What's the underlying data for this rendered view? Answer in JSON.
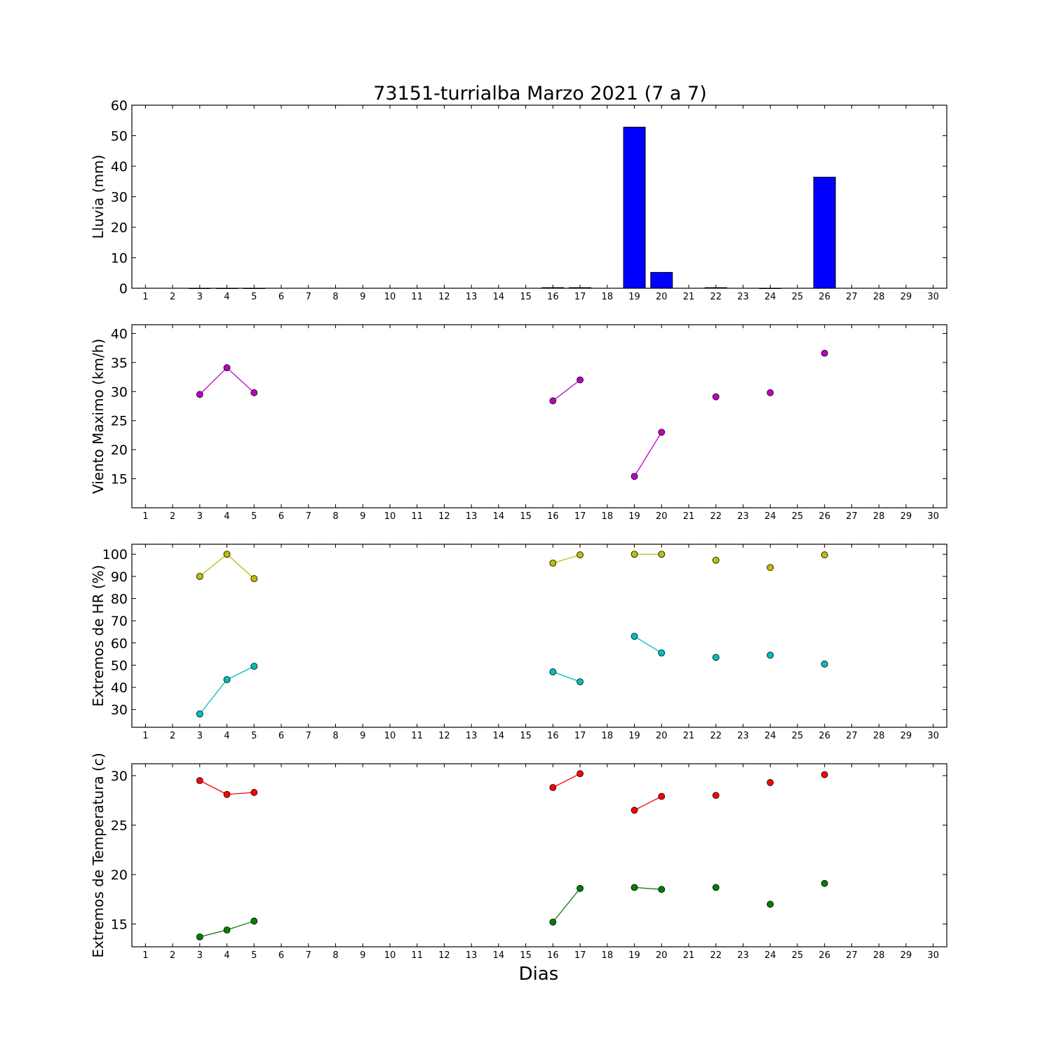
{
  "figure": {
    "title": "73151-turrialba Marzo 2021  (7 a 7)",
    "xlabel": "Dias"
  },
  "chart_data": [
    {
      "type": "bar",
      "ylabel": "Lluvia (mm)",
      "xlim": [
        0.5,
        30.5
      ],
      "ylim": [
        0,
        60
      ],
      "yticks": [
        0,
        10,
        20,
        30,
        40,
        50,
        60
      ],
      "xticks": [
        1,
        2,
        3,
        4,
        5,
        6,
        7,
        8,
        9,
        10,
        11,
        12,
        13,
        14,
        15,
        16,
        17,
        18,
        19,
        20,
        21,
        22,
        23,
        24,
        25,
        26,
        27,
        28,
        29,
        30
      ],
      "color": "#0000ff",
      "days": [
        3,
        4,
        5,
        16,
        17,
        19,
        20,
        22,
        24,
        26
      ],
      "values": [
        0,
        0,
        0,
        0.2,
        0.2,
        52.8,
        5.2,
        0.2,
        0,
        36.4
      ]
    },
    {
      "type": "line",
      "ylabel": "Viento Maximo (km/h)",
      "xlim": [
        0.5,
        30.5
      ],
      "ylim": [
        10,
        41.5
      ],
      "yticks": [
        15,
        20,
        25,
        30,
        35,
        40
      ],
      "xticks": [
        1,
        2,
        3,
        4,
        5,
        6,
        7,
        8,
        9,
        10,
        11,
        12,
        13,
        14,
        15,
        16,
        17,
        18,
        19,
        20,
        21,
        22,
        23,
        24,
        25,
        26,
        27,
        28,
        29,
        30
      ],
      "series": [
        {
          "color": "#bf00bf",
          "x": [
            3,
            4,
            5,
            16,
            17,
            19,
            20,
            22,
            24,
            26
          ],
          "values": [
            29.5,
            34.1,
            29.8,
            28.4,
            32.0,
            15.4,
            23.0,
            29.1,
            29.8,
            36.6
          ]
        }
      ]
    },
    {
      "type": "line",
      "ylabel": "Extremos de HR (%)",
      "xlim": [
        0.5,
        30.5
      ],
      "ylim": [
        22,
        104.5
      ],
      "yticks": [
        30,
        40,
        50,
        60,
        70,
        80,
        90,
        100
      ],
      "xticks": [
        1,
        2,
        3,
        4,
        5,
        6,
        7,
        8,
        9,
        10,
        11,
        12,
        13,
        14,
        15,
        16,
        17,
        18,
        19,
        20,
        21,
        22,
        23,
        24,
        25,
        26,
        27,
        28,
        29,
        30
      ],
      "series": [
        {
          "color": "#bfbf00",
          "x": [
            3,
            4,
            5,
            16,
            17,
            19,
            20,
            22,
            24,
            26
          ],
          "values": [
            90,
            100,
            89,
            96,
            99.7,
            100,
            100,
            97.3,
            94,
            99.7
          ]
        },
        {
          "color": "#00bfbf",
          "x": [
            3,
            4,
            5,
            16,
            17,
            19,
            20,
            22,
            24,
            26
          ],
          "values": [
            28,
            43.5,
            49.5,
            47,
            42.5,
            63,
            55.5,
            53.5,
            54.5,
            50.5
          ]
        }
      ]
    },
    {
      "type": "line",
      "ylabel": "Extremos de Temperatura (c)",
      "xlim": [
        0.5,
        30.5
      ],
      "ylim": [
        12.7,
        31.2
      ],
      "yticks": [
        15,
        20,
        25,
        30
      ],
      "xticks": [
        1,
        2,
        3,
        4,
        5,
        6,
        7,
        8,
        9,
        10,
        11,
        12,
        13,
        14,
        15,
        16,
        17,
        18,
        19,
        20,
        21,
        22,
        23,
        24,
        25,
        26,
        27,
        28,
        29,
        30
      ],
      "series": [
        {
          "color": "#ff0000",
          "x": [
            3,
            4,
            5,
            16,
            17,
            19,
            20,
            22,
            24,
            26
          ],
          "values": [
            29.5,
            28.1,
            28.3,
            28.8,
            30.2,
            26.5,
            27.9,
            28.0,
            29.3,
            30.1
          ]
        },
        {
          "color": "#008000",
          "x": [
            3,
            4,
            5,
            16,
            17,
            19,
            20,
            22,
            24,
            26
          ],
          "values": [
            13.7,
            14.4,
            15.3,
            15.2,
            18.6,
            18.7,
            18.5,
            18.7,
            17.0,
            19.1
          ]
        }
      ]
    }
  ]
}
